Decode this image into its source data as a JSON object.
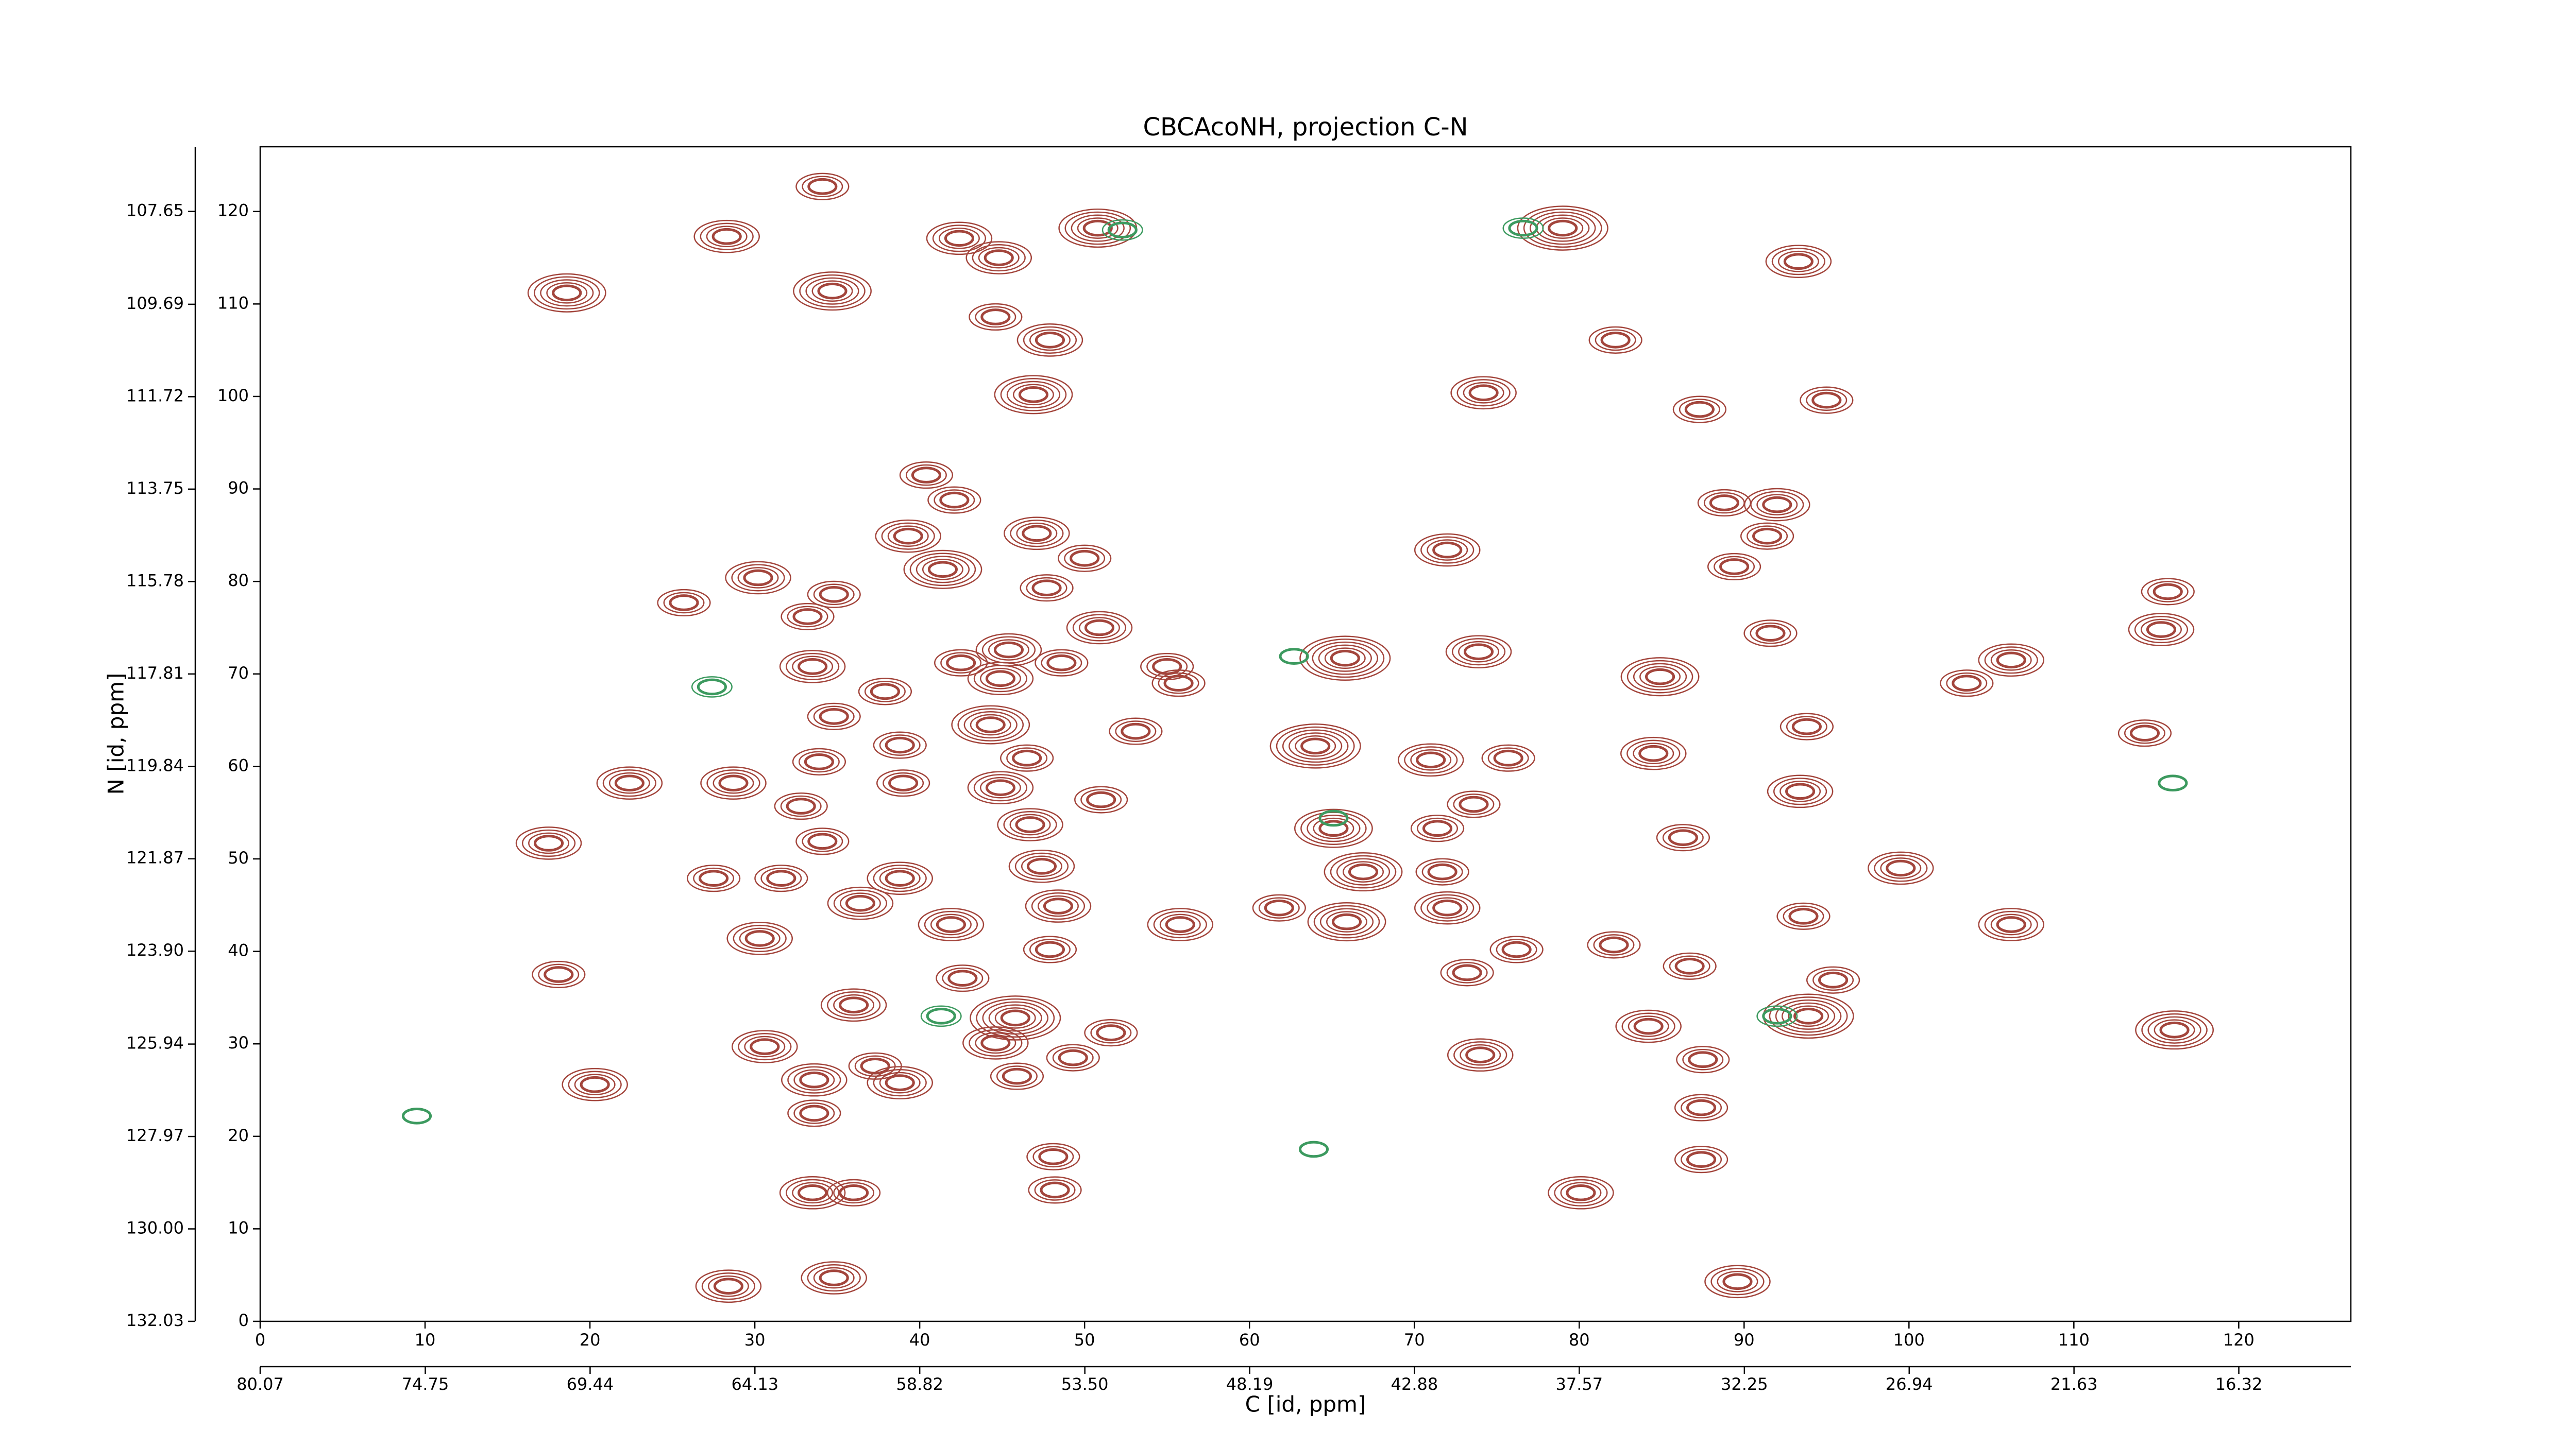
{
  "chart_data": {
    "type": "contour",
    "title": "CBCAcoNH, projection C-N",
    "xlabel": "C [id, ppm]",
    "ylabel": "N [id, ppm]",
    "xlim": [
      0,
      126.8
    ],
    "ylim": [
      0,
      127
    ],
    "xticks": [
      0,
      10,
      20,
      30,
      40,
      50,
      60,
      70,
      80,
      90,
      100,
      110,
      120
    ],
    "yticks": [
      0,
      10,
      20,
      30,
      40,
      50,
      60,
      70,
      80,
      90,
      100,
      110,
      120
    ],
    "x2lim": [
      80.07,
      12.71
    ],
    "x2ticks": [
      80.07,
      74.75,
      69.44,
      64.13,
      58.82,
      {
        "value": 53.5,
        "label": "53.50"
      },
      48.19,
      42.88,
      37.57,
      32.25,
      26.94,
      21.63,
      16.32
    ],
    "y2lim": [
      132.03,
      106.23
    ],
    "y2ticks": [
      132.03,
      {
        "value": 130,
        "label": "130.00"
      },
      127.97,
      125.94,
      {
        "value": 123.9,
        "label": "123.90"
      },
      121.87,
      119.84,
      117.81,
      115.78,
      113.75,
      111.72,
      109.69,
      107.65
    ],
    "series": [
      {
        "color": "#a3453c",
        "x": [
          18.6,
          28.3,
          34.7,
          34.1,
          42.4,
          44.8,
          50.8,
          79,
          93.3,
          82.2,
          44.6,
          47.9,
          46.9,
          74.2,
          87.3,
          95,
          40.4,
          42.1,
          39.3,
          47.1,
          41.4,
          50,
          30.2,
          25.7,
          34.8,
          33.2,
          47.7,
          50.9,
          45.4,
          44.9,
          42.5,
          48.6,
          33.5,
          37.9,
          55,
          55.7,
          65.8,
          73.9,
          84.9,
          91.6,
          103.5,
          106.2,
          115.3,
          115.7,
          114.3,
          88.8,
          92,
          91.4,
          89.4,
          72,
          44.3,
          34.8,
          33.9,
          38.8,
          46.5,
          64,
          53.1,
          71,
          75.7,
          84.5,
          93.8,
          93.4,
          22.4,
          28.7,
          32.8,
          39,
          44.9,
          46.7,
          51,
          65.1,
          71.4,
          73.6,
          86.3,
          17.5,
          27.5,
          31.6,
          34.1,
          38.8,
          36.4,
          47.4,
          48.4,
          66.9,
          71.7,
          99.5,
          93.6,
          72,
          65.9,
          55.8,
          61.8,
          106.2,
          30.3,
          41.9,
          47.9,
          42.6,
          76.2,
          82.1,
          86.7,
          95.4,
          73.2,
          18.1,
          36,
          45.8,
          44.6,
          51.6,
          49.3,
          30.6,
          37.3,
          38.8,
          33.6,
          45.9,
          93.9,
          84.2,
          74,
          116.1,
          87.5,
          20.3,
          33.6,
          87.4,
          48.1,
          87.4,
          48.2,
          33.5,
          36,
          80.1,
          28.4,
          34.8,
          89.6
        ],
        "values": [
          111.2,
          117.3,
          111.4,
          122.7,
          117.1,
          115,
          118.2,
          118.2,
          114.6,
          106.1,
          108.6,
          106.1,
          100.2,
          100.4,
          98.6,
          99.6,
          91.5,
          88.8,
          84.9,
          85.2,
          81.3,
          82.5,
          80.4,
          77.7,
          78.6,
          76.2,
          79.3,
          75,
          72.6,
          69.5,
          71.2,
          71.2,
          70.8,
          68.1,
          70.8,
          69,
          71.7,
          72.4,
          69.7,
          74.4,
          69,
          71.5,
          74.8,
          78.9,
          63.6,
          88.5,
          88.3,
          84.9,
          81.6,
          83.4,
          64.5,
          65.4,
          60.5,
          62.3,
          60.9,
          62.2,
          63.8,
          60.7,
          60.9,
          61.4,
          64.3,
          57.3,
          58.2,
          58.2,
          55.7,
          58.2,
          57.7,
          53.7,
          56.4,
          53.3,
          53.3,
          55.9,
          52.3,
          51.7,
          47.9,
          47.9,
          51.9,
          47.9,
          45.2,
          49.2,
          44.9,
          48.6,
          48.6,
          49,
          43.8,
          44.7,
          43.2,
          42.9,
          44.7,
          42.9,
          41.4,
          42.9,
          40.2,
          37.1,
          40.2,
          40.7,
          38.4,
          36.9,
          37.7,
          37.5,
          34.2,
          32.8,
          30.1,
          31.2,
          28.5,
          29.7,
          27.6,
          25.8,
          26.1,
          26.5,
          33,
          31.9,
          28.8,
          31.5,
          28.3,
          25.6,
          22.5,
          23.1,
          17.8,
          17.5,
          14.2,
          13.9,
          13.9,
          13.9,
          3.8,
          4.7,
          4.3
        ],
        "levels": [
          5,
          4,
          5,
          3,
          4,
          4,
          5,
          6,
          4,
          3,
          3,
          4,
          5,
          4,
          3,
          3,
          3,
          3,
          4,
          4,
          5,
          3,
          4,
          3,
          3,
          3,
          3,
          4,
          4,
          4,
          3,
          3,
          4,
          3,
          3,
          3,
          6,
          4,
          5,
          3,
          3,
          4,
          4,
          3,
          3,
          3,
          4,
          3,
          3,
          4,
          5,
          3,
          3,
          3,
          3,
          6,
          3,
          4,
          3,
          4,
          3,
          4,
          4,
          4,
          3,
          3,
          4,
          4,
          3,
          5,
          3,
          3,
          3,
          4,
          3,
          3,
          3,
          4,
          4,
          4,
          4,
          5,
          3,
          4,
          3,
          4,
          5,
          4,
          3,
          4,
          4,
          4,
          3,
          3,
          3,
          3,
          3,
          3,
          3,
          3,
          4,
          6,
          4,
          3,
          3,
          4,
          3,
          4,
          4,
          3,
          6,
          4,
          4,
          5,
          3,
          4,
          3,
          3,
          3,
          3,
          3,
          4,
          3,
          4,
          4,
          4,
          4
        ]
      },
      {
        "color": "#3c9a5f",
        "x": [
          52.3,
          76.6,
          41.3,
          92,
          65.1,
          27.4,
          62.7,
          116,
          9.5,
          63.9
        ],
        "values": [
          118,
          118.2,
          33,
          33,
          54.4,
          68.6,
          71.9,
          58.2,
          22.2,
          18.6
        ],
        "levels": [
          2,
          2,
          2,
          2,
          1,
          2,
          1,
          1,
          1,
          1
        ]
      }
    ]
  }
}
